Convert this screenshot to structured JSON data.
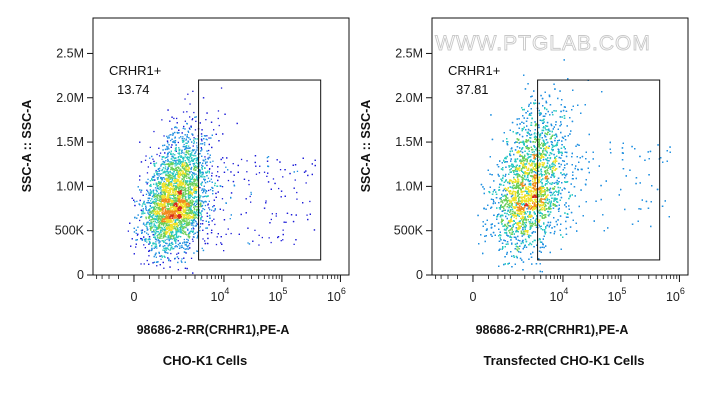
{
  "watermark": "WWW.PTGLAB.COM",
  "colors": {
    "density": [
      "#1a1ad8",
      "#1f8fe0",
      "#27c7c2",
      "#6bd05a",
      "#f0e22a",
      "#f28a1e",
      "#d62b1e"
    ],
    "frame": "#111111",
    "gate": "#111111"
  },
  "chart_data": [
    {
      "type": "scatter",
      "subtype": "flow-cytometry-density-dot-plot",
      "title": "",
      "caption": "CHO-K1 Cells",
      "xlabel": "98686-2-RR(CRHR1),PE-A",
      "ylabel": "SSC-A :: SSC-A",
      "x_scale": "biexponential",
      "y_scale": "linear",
      "x_ticks": [
        {
          "base": "0",
          "exp": ""
        },
        {
          "base": "10",
          "exp": "4"
        },
        {
          "base": "10",
          "exp": "5"
        },
        {
          "base": "10",
          "exp": "6"
        }
      ],
      "y_ticks": [
        "0",
        "500K",
        "1.0M",
        "1.5M",
        "2.0M",
        "2.5M"
      ],
      "ylim": [
        0,
        2900000
      ],
      "gate": {
        "name": "CRHR1+",
        "percent": "13.74",
        "x_min": 3500,
        "x_max": 460000,
        "y_min": 170000,
        "y_max": 2200000
      },
      "population": {
        "x_center": 1200,
        "y_center": 850000,
        "count": 5200,
        "spread": "narrow"
      }
    },
    {
      "type": "scatter",
      "subtype": "flow-cytometry-density-dot-plot",
      "title": "",
      "caption": "Transfected CHO-K1 Cells",
      "xlabel": "98686-2-RR(CRHR1),PE-A",
      "ylabel": "SSC-A :: SSC-A",
      "x_scale": "biexponential",
      "y_scale": "linear",
      "x_ticks": [
        {
          "base": "0",
          "exp": ""
        },
        {
          "base": "10",
          "exp": "4"
        },
        {
          "base": "10",
          "exp": "5"
        },
        {
          "base": "10",
          "exp": "6"
        }
      ],
      "y_ticks": [
        "0",
        "500K",
        "1.0M",
        "1.5M",
        "2.0M",
        "2.5M"
      ],
      "ylim": [
        0,
        2900000
      ],
      "gate": {
        "name": "CRHR1+",
        "percent": "37.81",
        "x_min": 3500,
        "x_max": 460000,
        "y_min": 170000,
        "y_max": 2200000
      },
      "population": {
        "x_center": 2500,
        "y_center": 1000000,
        "count": 6500,
        "spread": "wide"
      }
    }
  ]
}
